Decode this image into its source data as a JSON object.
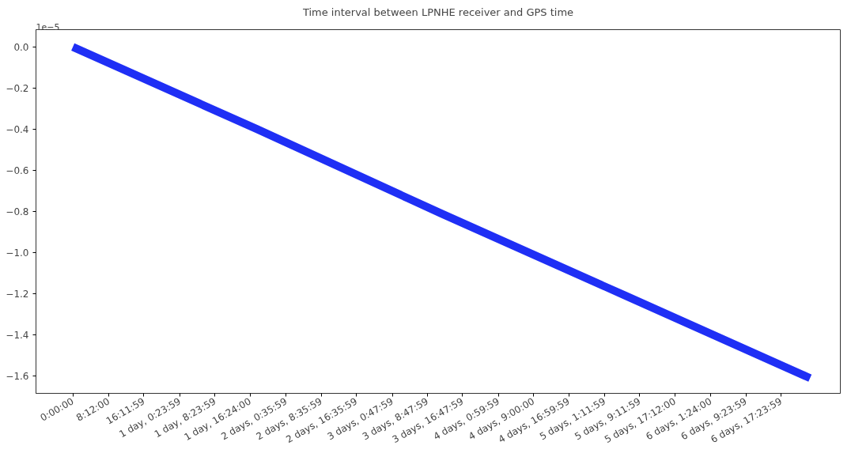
{
  "chart_data": {
    "type": "line",
    "title": "Time interval between LPNHE receiver and GPS time",
    "x": [
      0,
      42,
      84,
      126,
      168
    ],
    "series": [
      {
        "color": "#1f2ff5",
        "values": [
          0.0,
          -0.4,
          -0.81,
          -1.21,
          -1.61
        ]
      }
    ],
    "xlim": [
      -8.4,
      174.9
    ],
    "ylim": [
      -1.684,
      0.084
    ],
    "xticks": [
      {
        "value": 0,
        "label": "0:00:00"
      },
      {
        "value": 8.2,
        "label": "8:12:00"
      },
      {
        "value": 16.19972,
        "label": "16:11:59"
      },
      {
        "value": 24.39972,
        "label": "1 day, 0:23:59"
      },
      {
        "value": 32.39972,
        "label": "1 day, 8:23:59"
      },
      {
        "value": 40.4,
        "label": "1 day, 16:24:00"
      },
      {
        "value": 48.59972,
        "label": "2 days, 0:35:59"
      },
      {
        "value": 56.59972,
        "label": "2 days, 8:35:59"
      },
      {
        "value": 64.59972,
        "label": "2 days, 16:35:59"
      },
      {
        "value": 72.79972,
        "label": "3 days, 0:47:59"
      },
      {
        "value": 80.79972,
        "label": "3 days, 8:47:59"
      },
      {
        "value": 88.79972,
        "label": "3 days, 16:47:59"
      },
      {
        "value": 96.99972,
        "label": "4 days, 0:59:59"
      },
      {
        "value": 105.0,
        "label": "4 days, 9:00:00"
      },
      {
        "value": 112.99972,
        "label": "4 days, 16:59:59"
      },
      {
        "value": 121.19972,
        "label": "5 days, 1:11:59"
      },
      {
        "value": 129.19972,
        "label": "5 days, 9:11:59"
      },
      {
        "value": 137.2,
        "label": "5 days, 17:12:00"
      },
      {
        "value": 145.4,
        "label": "6 days, 1:24:00"
      },
      {
        "value": 153.39972,
        "label": "6 days, 9:23:59"
      },
      {
        "value": 161.39972,
        "label": "6 days, 17:23:59"
      }
    ],
    "yticks": [
      {
        "value": 0.0,
        "label": "0.0"
      },
      {
        "value": -0.2,
        "label": "−0.2"
      },
      {
        "value": -0.4,
        "label": "−0.4"
      },
      {
        "value": -0.6,
        "label": "−0.6"
      },
      {
        "value": -0.8,
        "label": "−0.8"
      },
      {
        "value": -1.0,
        "label": "−1.0"
      },
      {
        "value": -1.2,
        "label": "−1.2"
      },
      {
        "value": -1.4,
        "label": "−1.4"
      },
      {
        "value": -1.6,
        "label": "−1.6"
      }
    ],
    "annotations": [
      "1e−5"
    ],
    "grid": false,
    "marker": "none",
    "line_style": "solid"
  }
}
